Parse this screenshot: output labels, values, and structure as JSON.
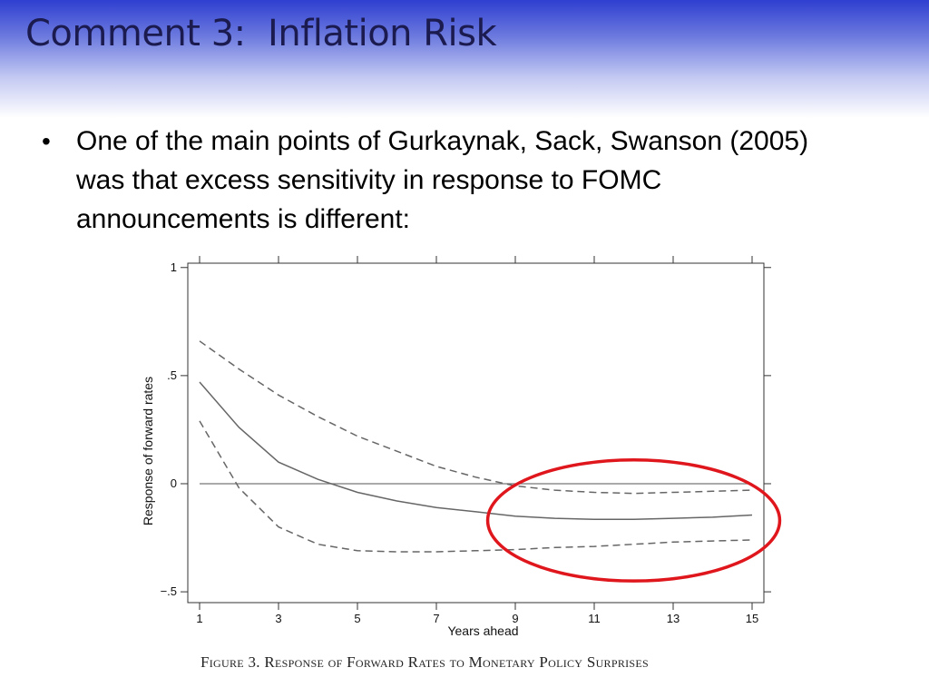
{
  "slide": {
    "title": "Comment 3:  Inflation Risk",
    "bullets": [
      "One of the main points of Gurkaynak, Sack, Swanson (2005) was that excess sensitivity in response to FOMC announcements is different:"
    ],
    "caption": "Figure 3. Response of Forward Rates to Monetary Policy Surprises",
    "colors": {
      "header_dark": "#2f3fd0",
      "title_text": "#1b1b50",
      "highlight": "#e0161d"
    }
  },
  "chart_data": {
    "type": "line",
    "title": "",
    "xlabel": "Years ahead",
    "ylabel": "Response of forward rates",
    "xlim": [
      1,
      15
    ],
    "ylim": [
      -0.55,
      1.02
    ],
    "xticks": [
      1,
      3,
      5,
      7,
      9,
      11,
      13,
      15
    ],
    "xtick_labels": [
      "1",
      "3",
      "5",
      "7",
      "9",
      "11",
      "13",
      "15"
    ],
    "yticks": [
      -0.5,
      0,
      0.5,
      1
    ],
    "ytick_labels": [
      "−.5",
      "0",
      ".5",
      "1"
    ],
    "grid": false,
    "legend": "none",
    "x": [
      1,
      2,
      3,
      4,
      5,
      6,
      7,
      8,
      9,
      10,
      11,
      12,
      13,
      14,
      15
    ],
    "series": [
      {
        "style": "dashed",
        "values": [
          0.66,
          0.53,
          0.41,
          0.31,
          0.22,
          0.15,
          0.08,
          0.03,
          -0.01,
          -0.03,
          -0.04,
          -0.045,
          -0.04,
          -0.035,
          -0.03
        ]
      },
      {
        "style": "solid",
        "values": [
          0.47,
          0.26,
          0.1,
          0.02,
          -0.04,
          -0.08,
          -0.11,
          -0.13,
          -0.15,
          -0.16,
          -0.165,
          -0.165,
          -0.16,
          -0.155,
          -0.145
        ]
      },
      {
        "style": "dashed",
        "values": [
          0.29,
          -0.02,
          -0.2,
          -0.28,
          -0.31,
          -0.315,
          -0.315,
          -0.31,
          -0.305,
          -0.295,
          -0.29,
          -0.28,
          -0.27,
          -0.265,
          -0.26
        ]
      }
    ],
    "reference_line": {
      "y": 0
    },
    "annotation": {
      "shape": "ellipse",
      "color": "#e0161d",
      "x_center": 12,
      "y_center": -0.17,
      "x_radius": 3.7,
      "y_radius": 0.28
    }
  }
}
